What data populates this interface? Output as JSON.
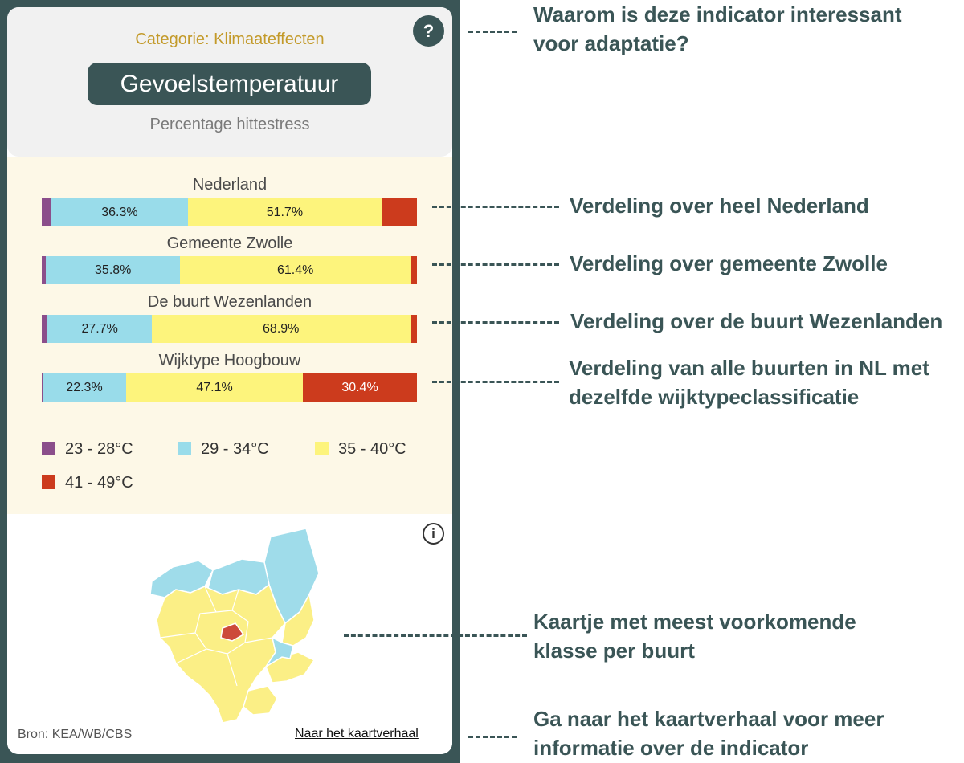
{
  "card": {
    "help_symbol": "?",
    "category": "Categorie: Klimaateffecten",
    "title": "Gevoelstemperatuur",
    "subtitle": "Percentage hittestress"
  },
  "chart_data": {
    "type": "bar",
    "stacked": true,
    "orientation": "horizontal",
    "title": "Gevoelstemperatuur",
    "subtitle": "Percentage hittestress",
    "categories": [
      "Nederland",
      "Gemeente Zwolle",
      "De buurt Wezenlanden",
      "Wijktype Hoogbouw"
    ],
    "series": [
      {
        "name": "23 - 28°C",
        "color": "#8b4e8b",
        "values": [
          2.6,
          1.1,
          1.6,
          0.2
        ]
      },
      {
        "name": "29 - 34°C",
        "color": "#99dcea",
        "values": [
          36.3,
          35.8,
          27.7,
          22.3
        ]
      },
      {
        "name": "35 - 40°C",
        "color": "#fdf47c",
        "values": [
          51.7,
          61.4,
          68.9,
          47.1
        ]
      },
      {
        "name": "41 - 49°C",
        "color": "#cc3b1d",
        "values": [
          9.4,
          1.7,
          1.8,
          30.4
        ]
      }
    ],
    "data_labels": [
      [
        "",
        "36.3%",
        "51.7%",
        ""
      ],
      [
        "",
        "35.8%",
        "61.4%",
        ""
      ],
      [
        "",
        "27.7%",
        "68.9%",
        ""
      ],
      [
        "",
        "22.3%",
        "47.1%",
        "30.4%"
      ]
    ],
    "xlim": [
      0,
      100
    ],
    "legend_position": "bottom"
  },
  "legend": [
    {
      "label": "23 - 28°C",
      "color": "#8b4e8b"
    },
    {
      "label": "29 - 34°C",
      "color": "#99dcea"
    },
    {
      "label": "35 - 40°C",
      "color": "#fdf47c"
    },
    {
      "label": "41 - 49°C",
      "color": "#cc3b1d"
    }
  ],
  "map": {
    "info_symbol": "i",
    "dominant_class": "35 - 40°C",
    "colors": {
      "yellow": "#fbef86",
      "blue": "#9fdcea",
      "red": "#cd4a3a"
    }
  },
  "footer": {
    "source": "Bron: KEA/WB/CBS",
    "story_link": "Naar het kaartverhaal"
  },
  "annotations": {
    "help": "Waarom is deze indicator interessant\nvoor adaptatie?",
    "nl": "Verdeling over heel Nederland",
    "zwolle": "Verdeling over gemeente Zwolle",
    "buurt": "Verdeling over de buurt Wezenlanden",
    "wijktype": "Verdeling van alle buurten in NL met\ndezelfde wijktypeclassificatie",
    "map": "Kaartje met meest voorkomende\nklasse per buurt",
    "story": "Ga naar het kaartverhaal voor meer\ninformatie over de indicator"
  }
}
